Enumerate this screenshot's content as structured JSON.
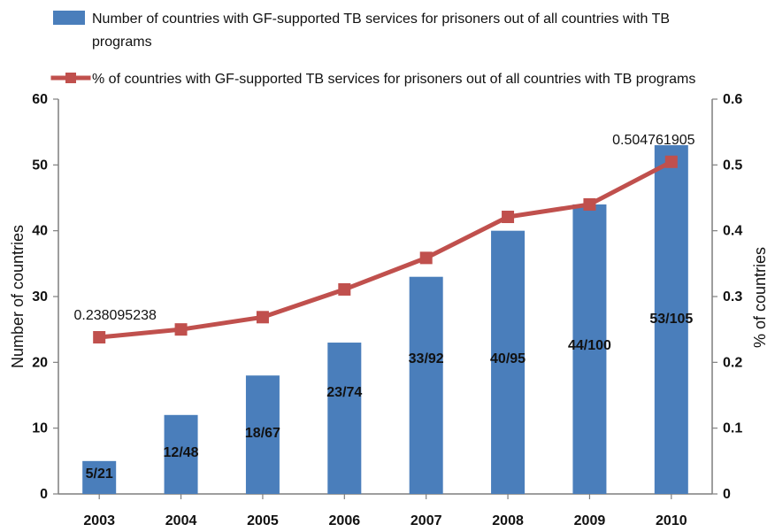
{
  "chart_data": {
    "type": "bar",
    "categories": [
      "2003",
      "2004",
      "2005",
      "2006",
      "2007",
      "2008",
      "2009",
      "2010"
    ],
    "series": [
      {
        "name": "Number of countries with GF-supported TB services for prisoners out of all countries with TB programs",
        "type": "bar",
        "axis": "left",
        "values": [
          5,
          12,
          18,
          23,
          33,
          40,
          44,
          53
        ],
        "data_labels": [
          "5/21",
          "12/48",
          "18/67",
          "23/74",
          "33/92",
          "40/95",
          "44/100",
          "53/105"
        ],
        "color": "#4a7ebb"
      },
      {
        "name": "% of countries with GF-supported TB services for prisoners out of all countries with TB programs",
        "type": "line",
        "axis": "right",
        "values": [
          0.238095238,
          0.25,
          0.268656716,
          0.310810811,
          0.358695652,
          0.421052632,
          0.44,
          0.504761905
        ],
        "data_labels": [
          "0.238095238",
          "",
          "",
          "",
          "",
          "",
          "",
          "0.504761905"
        ],
        "color": "#c0504d",
        "marker": "square"
      }
    ],
    "title": "",
    "xlabel": "",
    "ylabel": "Number of countries",
    "ylabel_right": "% of countries",
    "ylim": [
      0,
      60
    ],
    "ylim_right": [
      0,
      0.6
    ],
    "yticks": [
      "0",
      "10",
      "20",
      "30",
      "40",
      "50",
      "60"
    ],
    "yticks_right": [
      "0",
      "0.1",
      "0.2",
      "0.3",
      "0.4",
      "0.5",
      "0.6"
    ],
    "legend_position": "top",
    "grid": false
  }
}
